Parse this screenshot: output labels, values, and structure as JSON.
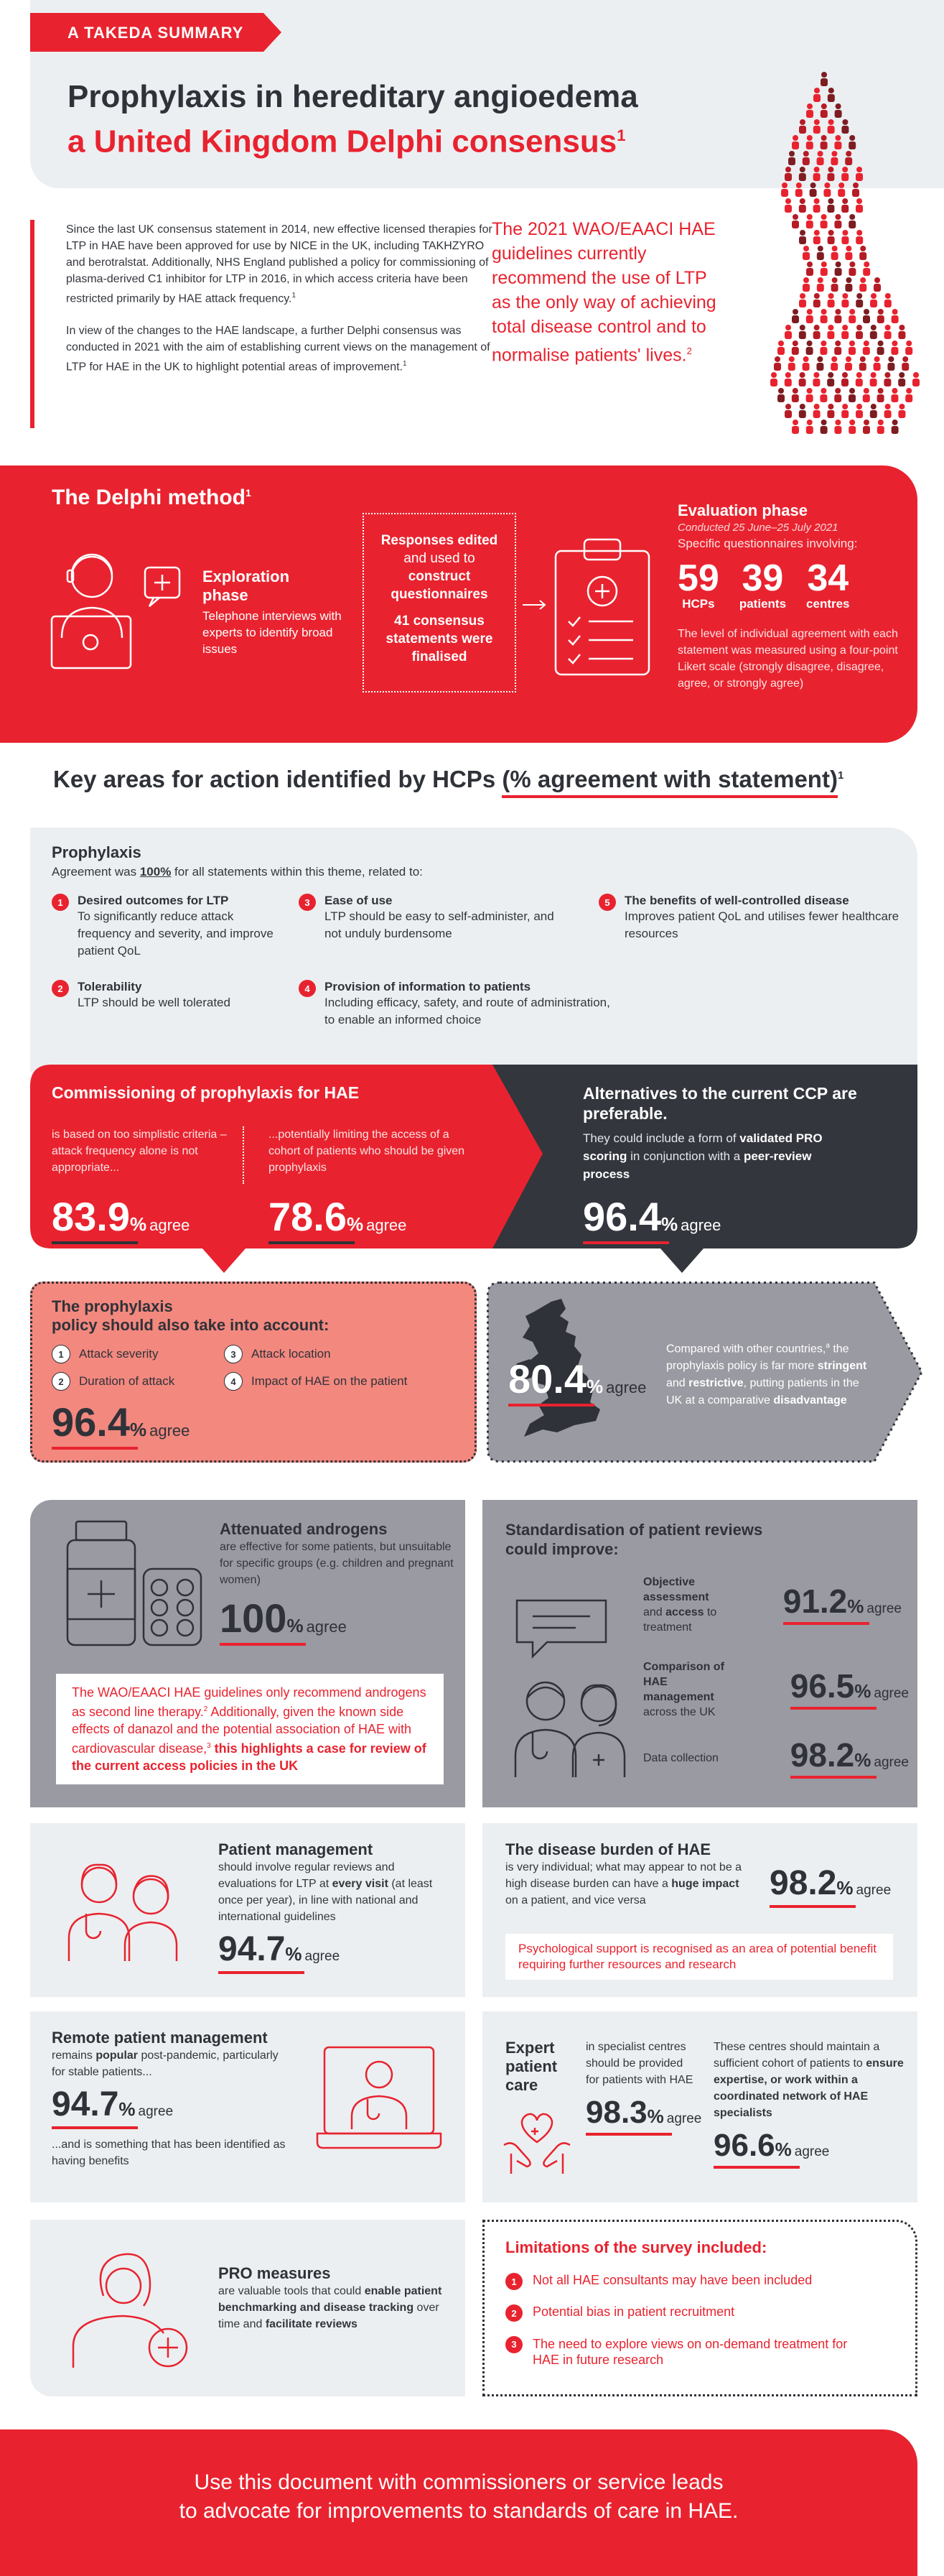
{
  "header": {
    "tag": "A TAKEDA SUMMARY",
    "title_line1": "Prophylaxis in hereditary angioedema",
    "title_line2": "a United Kingdom Delphi consensus",
    "title_sup": "1"
  },
  "intro": {
    "para1": "Since the last UK consensus statement in 2014, new effective licensed therapies for LTP in HAE have been approved for use by NICE in the UK, including TAKHZYRO and berotralstat. Additionally, NHS England published a policy for commissioning of plasma-derived C1 inhibitor for LTP in 2016, in which access criteria have been restricted primarily by HAE attack frequency.",
    "para1_sup": "1",
    "para2": "In view of the changes to the HAE landscape, a further Delphi consensus was conducted in 2021 with the aim of establishing current views on the management of LTP for HAE in the UK to highlight potential areas of improvement.",
    "para2_sup": "1",
    "quote": "The 2021 WAO/EAACI HAE guidelines currently recommend the use of LTP as the only way of achieving total disease control and to normalise patients' lives.",
    "quote_sup": "2"
  },
  "delphi": {
    "title": "The Delphi method",
    "title_sup": "1",
    "exploration_title": "Exploration phase",
    "exploration_text": "Telephone interviews with experts to identify broad issues",
    "responses_line1": "Responses edited",
    "responses_line2": "and used to",
    "responses_line3": "construct questionnaires",
    "responses_line4": "41 consensus statements were finalised",
    "evaluation_title": "Evaluation phase",
    "evaluation_dates": "Conducted 25 June–25 July 2021",
    "evaluation_sub": "Specific questionnaires involving:",
    "stats": [
      {
        "value": "59",
        "label": "HCPs"
      },
      {
        "value": "39",
        "label": "patients"
      },
      {
        "value": "34",
        "label": "centres"
      }
    ],
    "likert": "The level of individual agreement with each statement was measured using a four-point Likert scale (strongly disagree, disagree, agree, or strongly agree)"
  },
  "key_areas": {
    "title_a": "Key areas for action identified by HCPs ",
    "title_b": "(% agreement with statement)",
    "title_sup": "1"
  },
  "prophylaxis": {
    "title": "Prophylaxis",
    "intro_a": "Agreement was ",
    "intro_b": "100%",
    "intro_c": " for all statements within this theme, related to:",
    "items": [
      {
        "num": "1",
        "title": "Desired outcomes for LTP",
        "text": "To significantly reduce attack frequency and severity, and improve patient QoL"
      },
      {
        "num": "2",
        "title": "Tolerability",
        "text": "LTP should be well tolerated"
      },
      {
        "num": "3",
        "title": "Ease of use",
        "text": "LTP should be easy to self-administer, and not unduly burdensome"
      },
      {
        "num": "4",
        "title": "Provision of information to patients",
        "text": "Including efficacy, safety, and route of administration, to enable an informed choice"
      },
      {
        "num": "5",
        "title": "The benefits of well-controlled disease",
        "text": "Improves patient QoL and utilises fewer healthcare resources"
      }
    ]
  },
  "commissioning": {
    "title": "Commissioning of prophylaxis for HAE",
    "left_text": "is based on too simplistic criteria – attack frequency alone is not appropriate...",
    "left_value": "83.9",
    "right_text": "...potentially limiting the access of a cohort of patients who should be given prophylaxis",
    "right_value": "78.6",
    "pct": "%",
    "agree": "agree"
  },
  "alternatives": {
    "title": "Alternatives to the current CCP are preferable.",
    "text_a": "They could include a form of ",
    "text_b": "validated PRO scoring",
    "text_c": " in conjunction with a ",
    "text_d": "peer-review process",
    "value": "96.4"
  },
  "policy": {
    "title_line1": "The prophylaxis",
    "title_line2": "policy should also take into account:",
    "items": [
      {
        "num": "1",
        "text": "Attack severity"
      },
      {
        "num": "2",
        "text": "Duration of attack"
      },
      {
        "num": "3",
        "text": "Attack location"
      },
      {
        "num": "4",
        "text": "Impact of HAE on the patient"
      }
    ],
    "value": "96.4"
  },
  "comparison": {
    "value": "80.4",
    "text_a": "Compared with other countries,",
    "text_sup": "a",
    "text_b": " the prophylaxis policy is far more ",
    "text_c": "stringent",
    "text_d": " and ",
    "text_e": "restrictive",
    "text_f": ", putting patients in the UK at a comparative ",
    "text_g": "disadvantage"
  },
  "androgens": {
    "title": "Attenuated androgens",
    "text": "are effective for some patients, but unsuitable for specific groups (e.g. children and pregnant women)",
    "value": "100",
    "note_a": "The WAO/EAACI HAE guidelines only recommend androgens as second line therapy.",
    "note_sup1": "2",
    "note_b": " Additionally, given the known side effects of danazol and the potential association of HAE with cardiovascular disease,",
    "note_sup2": "3",
    "note_c": " this highlights a case for review of the current access policies in the UK"
  },
  "standardisation": {
    "title_line1": "Standardisation of patient reviews",
    "title_line2": "could improve:",
    "items": [
      {
        "label_a": "Objective assessment",
        "label_b": " and ",
        "label_c": "access",
        "label_d": " to treatment",
        "value": "91.2"
      },
      {
        "label_a": "Comparison of HAE management",
        "label_b": "",
        "label_c": "",
        "label_d": " across the UK",
        "value": "96.5"
      },
      {
        "label_a": "",
        "label_b": "Data collection",
        "label_c": "",
        "label_d": "",
        "value": "98.2"
      }
    ]
  },
  "patient_mgmt": {
    "title": "Patient management",
    "text_a": "should involve regular reviews and evaluations for LTP at ",
    "text_b": "every visit",
    "text_c": " (at least once per year), in line with national and international guidelines",
    "value": "94.7"
  },
  "burden": {
    "title": "The disease burden of HAE",
    "text_a": "is very individual; what may appear to not be a high disease burden can have a ",
    "text_b": "huge impact",
    "text_c": " on a patient, and vice versa",
    "value": "98.2",
    "note": "Psychological support is recognised as an area of potential benefit requiring further resources and research"
  },
  "remote": {
    "title": "Remote patient management",
    "text_a": "remains ",
    "text_b": "popular",
    "text_c": " post-pandemic, particularly for stable patients...",
    "value": "94.7",
    "text2": "...and is something that has been identified as having benefits"
  },
  "expert": {
    "title_line1": "Expert",
    "title_line2": "patient",
    "title_line3": "care",
    "left_text": "in specialist centres should be provided for patients with HAE",
    "left_value": "98.3",
    "right_text_a": "These centres should maintain a sufficient cohort of patients to ",
    "right_text_b": "ensure expertise, or work within a coordinated network of HAE specialists",
    "right_value": "96.6"
  },
  "pro": {
    "title": "PRO measures",
    "text_a": "are valuable tools that could ",
    "text_b": "enable patient benchmarking and disease tracking",
    "text_c": " over time and ",
    "text_d": "facilitate reviews"
  },
  "limitations": {
    "title": "Limitations of the survey included:",
    "items": [
      {
        "num": "1",
        "text": "Not all HAE consultants may have been included"
      },
      {
        "num": "2",
        "text": "Potential bias in patient recruitment"
      },
      {
        "num": "3",
        "text": "The need to explore views on on-demand treatment for HAE in future research"
      }
    ]
  },
  "footer": {
    "line1": "Use this document with commissioners or service leads",
    "line2": "to advocate for improvements to standards of care in HAE."
  },
  "colors": {
    "brand_red": "#e8232f",
    "dark": "#2f3238",
    "grey_panel": "#eceff1",
    "mid_grey": "#9a9aa2"
  }
}
